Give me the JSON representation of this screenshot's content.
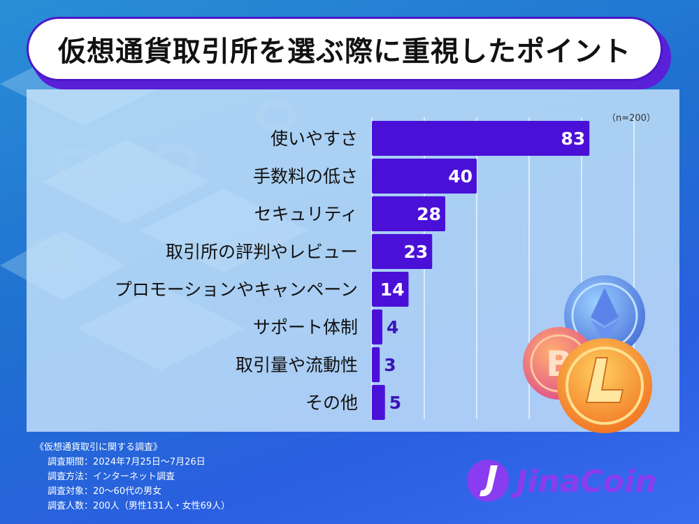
{
  "title": "仮想通貨取引所を選ぶ際に重視したポイント",
  "sample_note": "（n=200）",
  "chart_data": {
    "type": "bar",
    "orientation": "horizontal",
    "categories": [
      "使いやすさ",
      "手数料の低さ",
      "セキュリティ",
      "取引所の評判やレビュー",
      "プロモーションやキャンペーン",
      "サポート体制",
      "取引量や流動性",
      "その他"
    ],
    "values": [
      83,
      40,
      28,
      23,
      14,
      4,
      3,
      5
    ],
    "xlim": [
      0,
      100
    ],
    "grid": true,
    "bar_color": "#4a10d8",
    "label_color_inside": "#ffffff",
    "label_color_outside": "#3a14b8"
  },
  "footer": {
    "heading": "《仮想通貨取引に関する調査》",
    "lines": [
      "調査期間：2024年7月25日〜7月26日",
      "調査方法：インターネット調査",
      "調査対象：20〜60代の男女",
      "調査人数：200人（男性131人・女性69人）"
    ]
  },
  "logo": {
    "text": "JinaCoin",
    "color": "#8a3cf0"
  },
  "colors": {
    "accent": "#4a18c8",
    "background": "#2a7fd8"
  }
}
